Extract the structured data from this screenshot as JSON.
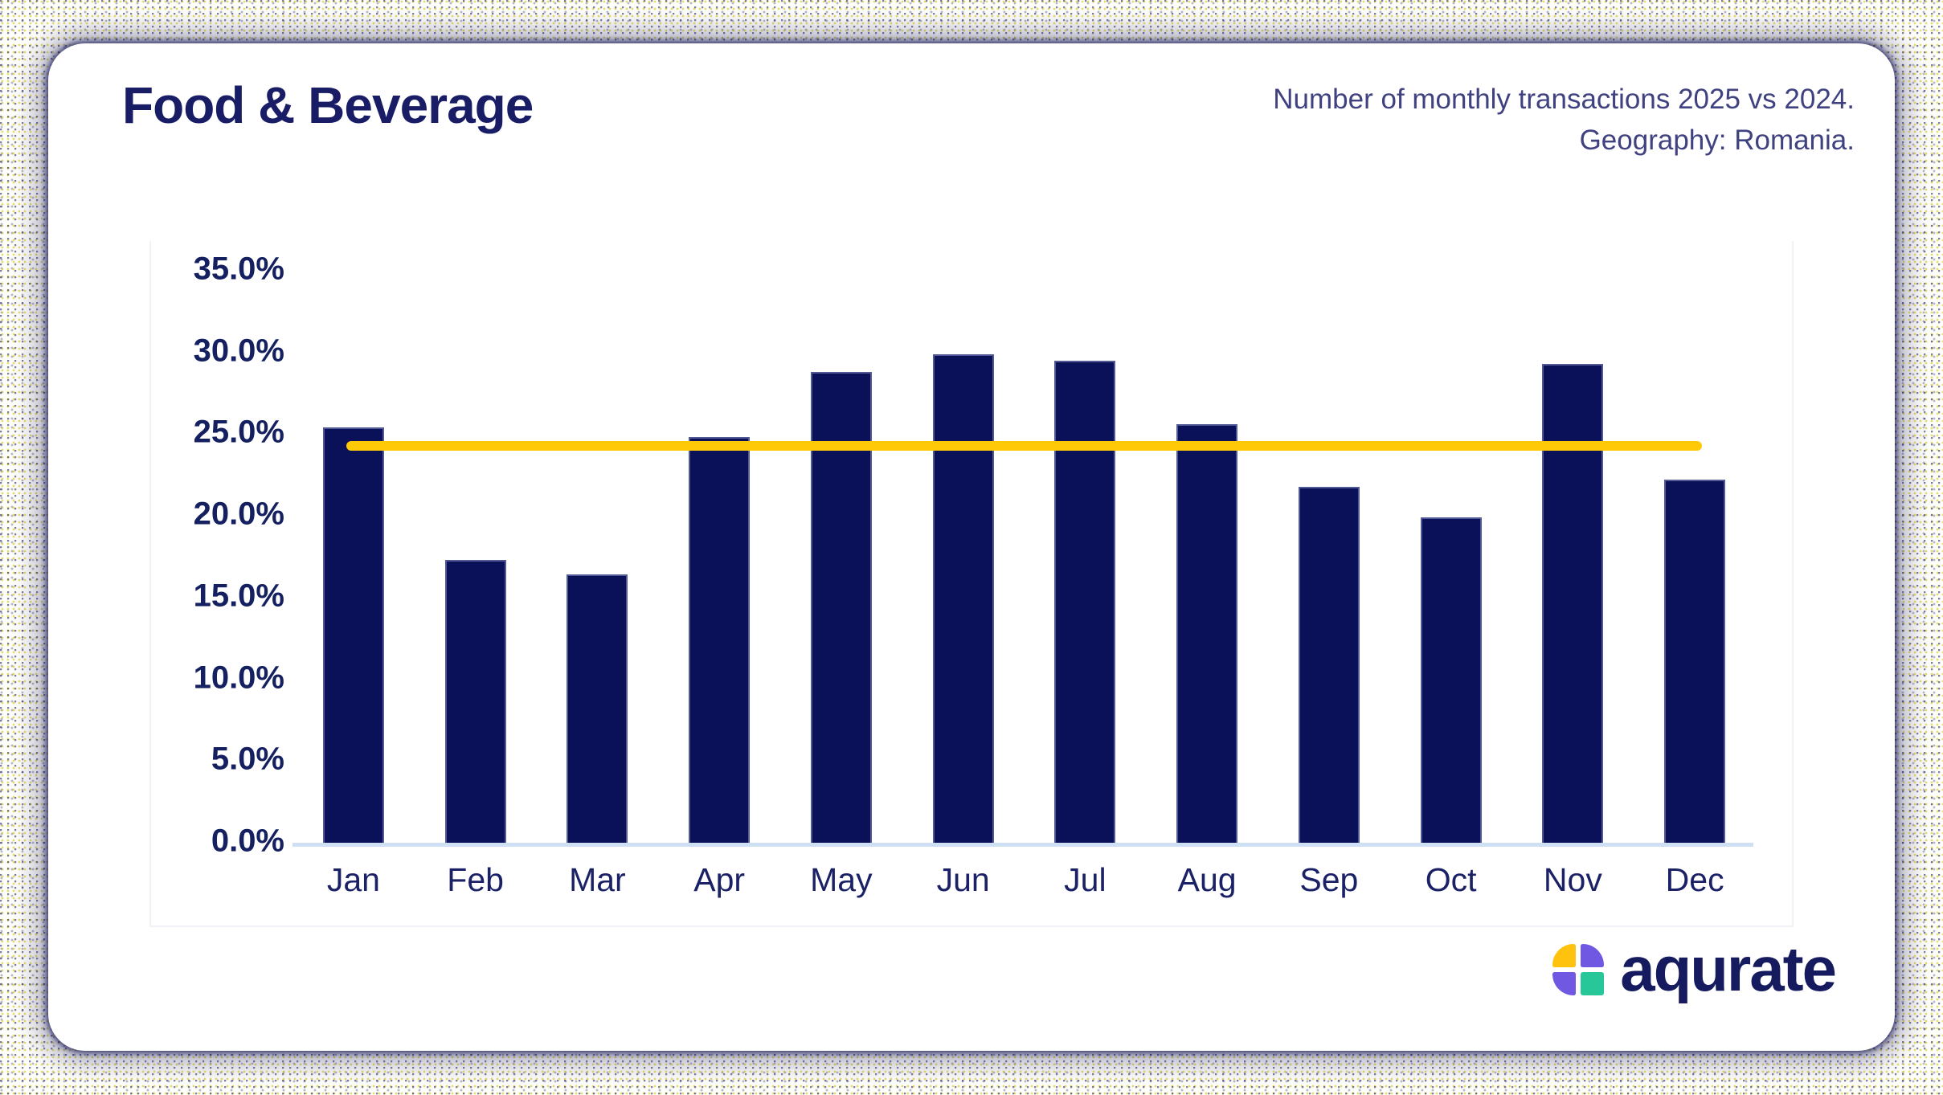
{
  "header": {
    "title": "Food & Beverage",
    "subtitle_lines": [
      "Number of monthly transactions 2025 vs 2024.",
      "Geography: Romania."
    ]
  },
  "chart_data": {
    "type": "bar",
    "title": "Food & Beverage",
    "categories": [
      "Jan",
      "Feb",
      "Mar",
      "Apr",
      "May",
      "Jun",
      "Jul",
      "Aug",
      "Sep",
      "Oct",
      "Nov",
      "Dec"
    ],
    "series": [
      {
        "name": "2025 monthly transactions share",
        "values": [
          25.4,
          17.3,
          16.4,
          24.8,
          28.8,
          29.9,
          29.5,
          25.6,
          21.8,
          19.9,
          29.3,
          22.2
        ]
      }
    ],
    "reference_line": {
      "value": 24.3,
      "color": "#FFC907"
    },
    "xlabel": "",
    "ylabel": "",
    "ylim": [
      0,
      35
    ],
    "y_tick_labels": [
      "0.0%",
      "5.0%",
      "10.0%",
      "15.0%",
      "20.0%",
      "25.0%",
      "30.0%",
      "35.0%"
    ],
    "grid": false,
    "legend": false,
    "bar_color": "#0A1158",
    "axis_line_color": "#CFE0F5"
  },
  "footer": {
    "logo": {
      "text": "aqurate",
      "mark_colors": {
        "top_left": "#FFC20E",
        "top_right": "#7158E2",
        "bottom_left": "#7158E2",
        "bottom_right": "#27C79A"
      }
    }
  }
}
